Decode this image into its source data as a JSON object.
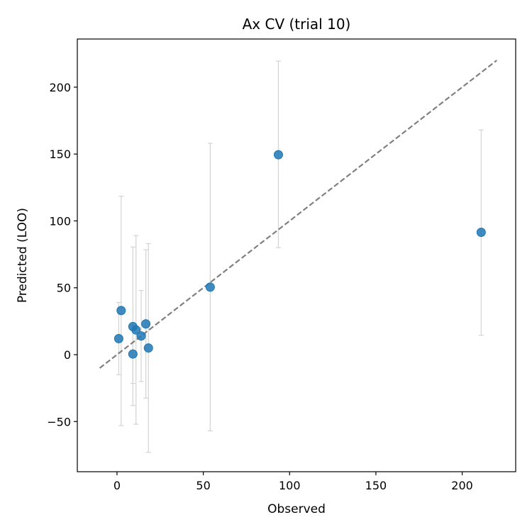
{
  "chart_data": {
    "type": "scatter",
    "title": "Ax CV (trial 10)",
    "xlabel": "Observed",
    "ylabel": "Predicted (LOO)",
    "xlim": [
      -23,
      231
    ],
    "ylim": [
      -87.5,
      236
    ],
    "xticks": [
      0,
      50,
      100,
      150,
      200
    ],
    "yticks": [
      -50,
      0,
      50,
      100,
      150,
      200
    ],
    "xtick_labels": [
      "0",
      "50",
      "100",
      "150",
      "200"
    ],
    "ytick_labels": [
      "−50",
      "0",
      "50",
      "100",
      "150",
      "200"
    ],
    "grid": false,
    "point_color": "#1f77b4",
    "errorbar_color": "#d3d3d3",
    "diagonal": {
      "from": [
        -10,
        -10
      ],
      "to": [
        220,
        220
      ],
      "color": "#808080",
      "style": "dashed"
    },
    "points": [
      {
        "x": 1,
        "y": 12,
        "ylo": -15,
        "yhi": 39
      },
      {
        "x": 2.4,
        "y": 33,
        "ylo": -53,
        "yhi": 118.5
      },
      {
        "x": 9.2,
        "y": 21,
        "ylo": -38,
        "yhi": 80.5
      },
      {
        "x": 9.2,
        "y": 0.5,
        "ylo": -21.5,
        "yhi": 22
      },
      {
        "x": 11,
        "y": 18.5,
        "ylo": -52,
        "yhi": 89
      },
      {
        "x": 14,
        "y": 14,
        "ylo": -20,
        "yhi": 48
      },
      {
        "x": 16.7,
        "y": 23,
        "ylo": -32.5,
        "yhi": 78.5
      },
      {
        "x": 18.2,
        "y": 5,
        "ylo": -73,
        "yhi": 83
      },
      {
        "x": 54,
        "y": 50.5,
        "ylo": -57,
        "yhi": 158
      },
      {
        "x": 93.5,
        "y": 149.5,
        "ylo": 80,
        "yhi": 219.5
      },
      {
        "x": 211,
        "y": 91.5,
        "ylo": 14.5,
        "yhi": 168
      }
    ]
  }
}
